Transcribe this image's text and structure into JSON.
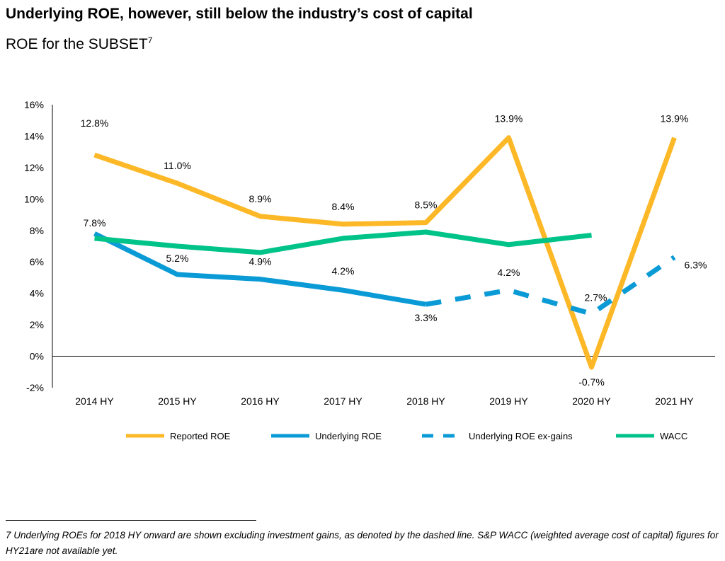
{
  "title": "Underlying ROE, however, still below the industry’s cost of capital",
  "subtitle": "ROE for the SUBSET",
  "subtitle_sup": "7",
  "footnote": "7 Underlying ROEs for 2018 HY onward are shown excluding investment gains, as denoted by the dashed line.  S&P WACC (weighted average cost of capital) figures for HY21are not available yet.",
  "chart_data": {
    "type": "line",
    "categories": [
      "2014 HY",
      "2015 HY",
      "2016 HY",
      "2017 HY",
      "2018 HY",
      "2019 HY",
      "2020 HY",
      "2021 HY"
    ],
    "ylim": [
      -2,
      16
    ],
    "yticks": [
      -2,
      0,
      2,
      4,
      6,
      8,
      10,
      12,
      14,
      16
    ],
    "ytick_labels": [
      "-2%",
      "0%",
      "2%",
      "4%",
      "6%",
      "8%",
      "10%",
      "12%",
      "14%",
      "16%"
    ],
    "grid": false,
    "legend": "bottom",
    "series": [
      {
        "name": "Reported ROE",
        "color": "#FDB827",
        "dash": false,
        "values": [
          12.8,
          11.0,
          8.9,
          8.4,
          8.5,
          13.9,
          -0.7,
          13.9
        ],
        "labels": [
          "12.8%",
          "11.0%",
          "8.9%",
          "8.4%",
          "8.5%",
          "13.9%",
          "-0.7%",
          "13.9%"
        ]
      },
      {
        "name": "Underlying ROE",
        "color": "#0A9BD6",
        "dash": false,
        "values": [
          7.8,
          5.2,
          4.9,
          4.2,
          3.3,
          null,
          null,
          null
        ],
        "labels": [
          "7.8%",
          "5.2%",
          "4.9%",
          "4.2%",
          "3.3%",
          null,
          null,
          null
        ]
      },
      {
        "name": "Underlying ROE ex-gains",
        "color": "#0A9BD6",
        "dash": true,
        "values": [
          null,
          null,
          null,
          null,
          3.3,
          4.2,
          2.7,
          6.3
        ],
        "labels": [
          null,
          null,
          null,
          null,
          null,
          "4.2%",
          "2.7%",
          "6.3%"
        ]
      },
      {
        "name": "WACC",
        "color": "#00C389",
        "dash": false,
        "values": [
          7.5,
          7.0,
          6.6,
          7.5,
          7.9,
          7.1,
          7.7,
          null
        ],
        "labels": [
          null,
          null,
          null,
          null,
          null,
          null,
          null,
          null
        ]
      }
    ]
  }
}
